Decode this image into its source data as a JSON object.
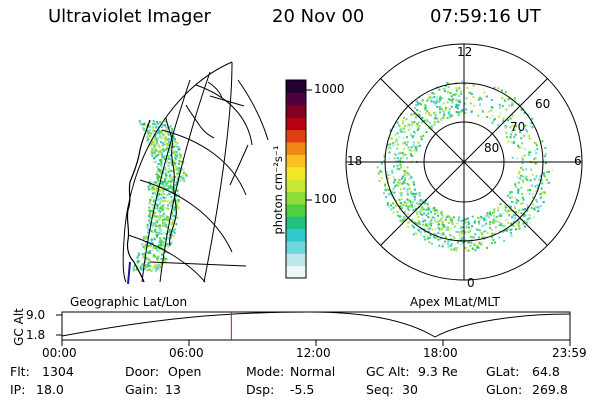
{
  "header": {
    "instrument": "Ultraviolet Imager",
    "date": "20 Nov 00",
    "time": "07:59:16 UT"
  },
  "colorbar": {
    "unit_label": "photon cm⁻²s⁻¹",
    "ticks": [
      "1000",
      "100"
    ],
    "tick_values": [
      1000,
      100
    ],
    "colors": [
      "#eef8f8",
      "#bfe8ec",
      "#6fd6dc",
      "#32c8d0",
      "#22c080",
      "#50d040",
      "#8ede38",
      "#c8e838",
      "#f2e828",
      "#f8c020",
      "#f08818",
      "#e04010",
      "#b80010",
      "#800020",
      "#500040",
      "#200030"
    ]
  },
  "left_panel": {
    "label": "Geographic Lat/Lon"
  },
  "right_panel": {
    "label": "Apex MLat/MLT",
    "mlt_labels": [
      "12",
      "18",
      "6",
      "0"
    ],
    "lat_labels": [
      "60",
      "70",
      "80"
    ],
    "lat_values": [
      60,
      70,
      80
    ]
  },
  "timeline": {
    "ylabel": "GC Alt",
    "yticks": [
      "9.0",
      "1.8"
    ],
    "ytick_values": [
      9.0,
      1.8
    ],
    "xticks": [
      "00:00",
      "06:00",
      "12:00",
      "18:00",
      "23:59"
    ],
    "current_time_hours": 8.0
  },
  "info": {
    "flt_label": "Flt:",
    "flt_value": "1304",
    "ip_label": "IP:",
    "ip_value": "18.0",
    "door_label": "Door:",
    "door_value": "Open",
    "gain_label": "Gain:",
    "gain_value": "13",
    "mode_label": "Mode:",
    "mode_value": "Normal",
    "dsp_label": "Dsp:",
    "dsp_value": "-5.5",
    "gcalt_label": "GC Alt:",
    "gcalt_value": "9.3 Re",
    "seq_label": "Seq:",
    "seq_value": "30",
    "glat_label": "GLat:",
    "glat_value": "64.8",
    "glon_label": "GLon:",
    "glon_value": "269.8"
  }
}
